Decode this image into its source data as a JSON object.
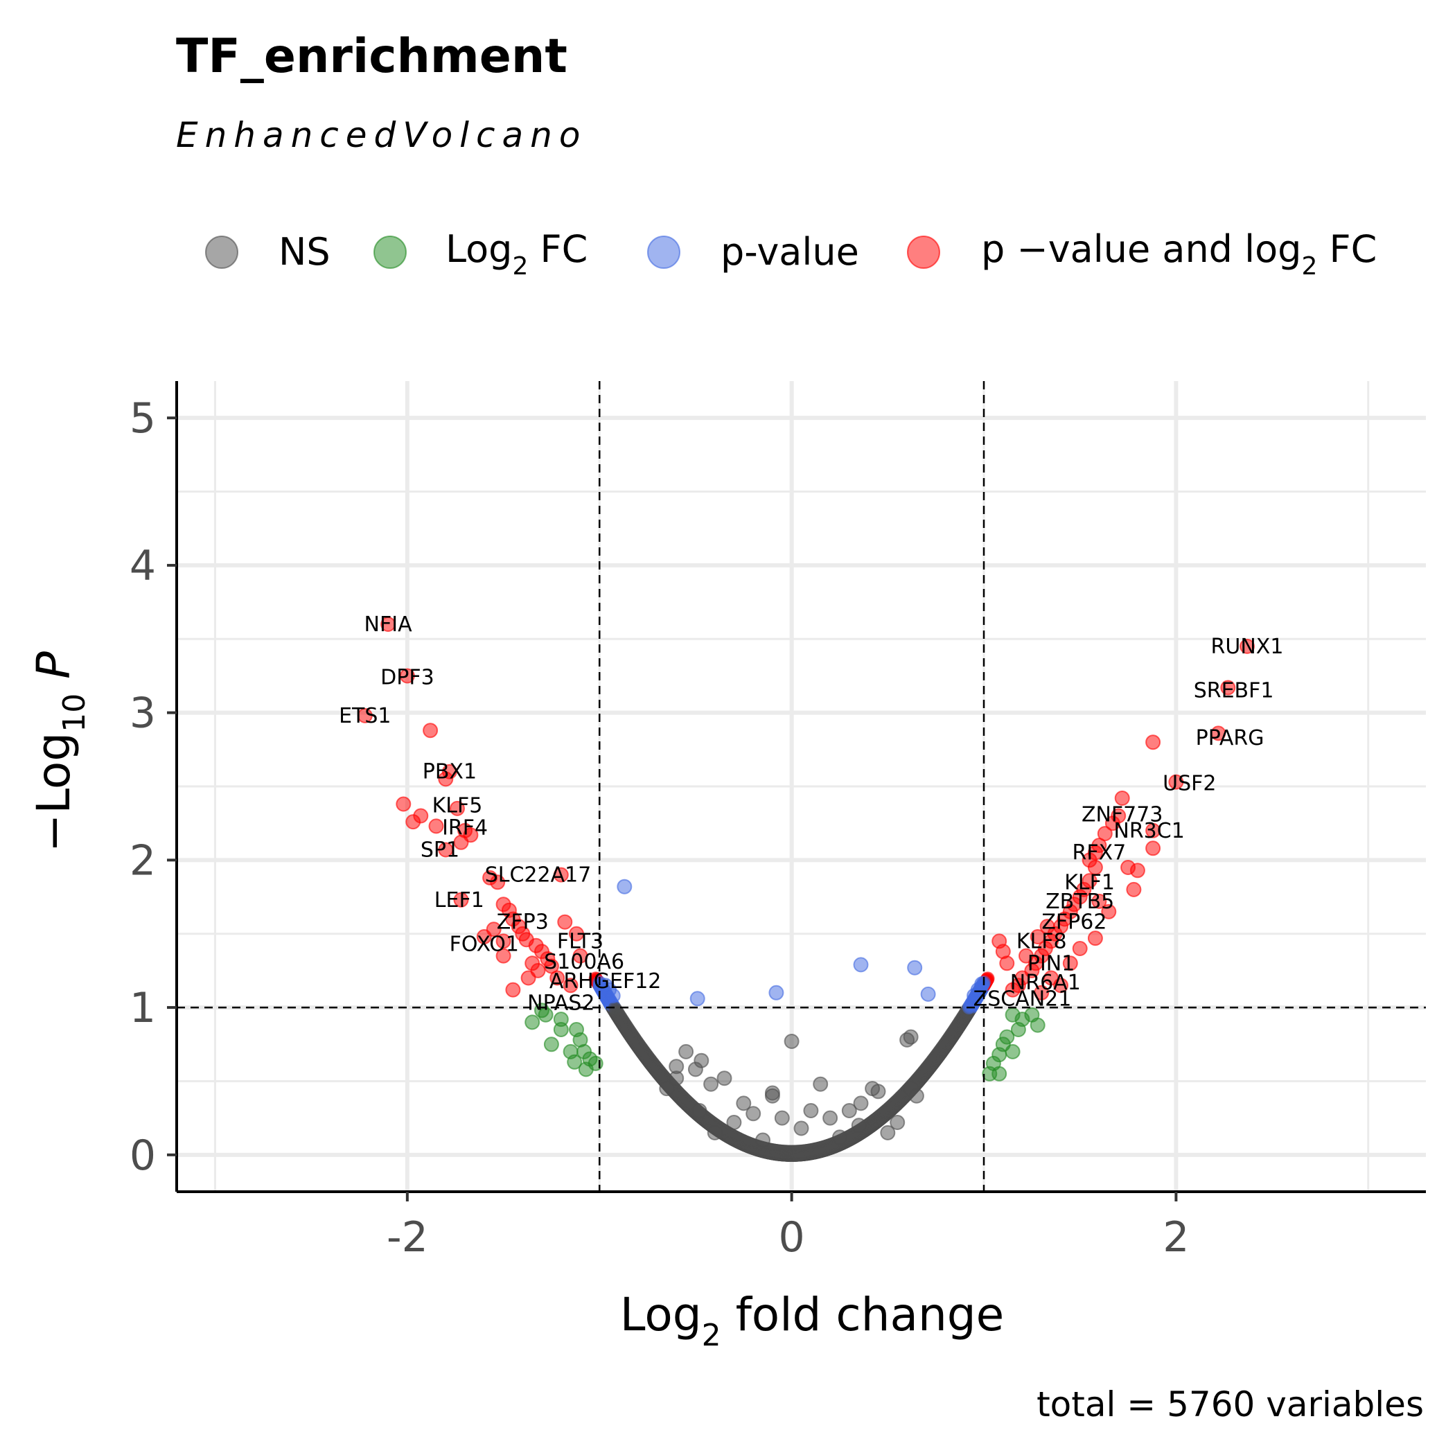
{
  "chart_data": {
    "type": "scatter",
    "title": "TF_enrichment",
    "subtitle": "EnhancedVolcano",
    "caption": "total = 5760 variables",
    "xlabel": {
      "main": "Log",
      "sub": "2",
      "rest": " fold change"
    },
    "ylabel": {
      "prefix": "−Log",
      "sub": "10",
      "suffix": " P"
    },
    "xlim": [
      -3.2,
      3.3
    ],
    "ylim": [
      -0.25,
      5.25
    ],
    "x_ticks": [
      -2,
      0,
      2
    ],
    "x_tick_labels": [
      "-2",
      "0",
      "2"
    ],
    "y_ticks": [
      0,
      1,
      2,
      3,
      4,
      5
    ],
    "y_tick_labels": [
      "0",
      "1",
      "2",
      "3",
      "4",
      "5"
    ],
    "grid": true,
    "cutoffs": {
      "log2fc": [
        -1,
        1
      ],
      "neg_log10_p": 1
    },
    "legend": {
      "position": "top",
      "items": [
        {
          "key": "ns",
          "main": "NS",
          "sub": "",
          "rest": ""
        },
        {
          "key": "fc",
          "main": "Log",
          "sub": "2",
          "rest": " FC"
        },
        {
          "key": "p",
          "main": "p-value",
          "sub": "",
          "rest": ""
        },
        {
          "key": "both",
          "main": "p −value  and  log",
          "sub": "2",
          "rest": " FC"
        }
      ]
    },
    "colors": {
      "ns": "#4d4d4d",
      "fc": "#228b22",
      "p": "#4169e1",
      "both": "#ff0000"
    },
    "curve": {
      "description": "dense band of points along -log10 p = 1.15 * fc^2",
      "coefficient": 1.15,
      "n": 5760
    },
    "series": [
      {
        "name": "p −value  and  log2 FC",
        "key": "both",
        "points": [
          [
            -2.1,
            3.6
          ],
          [
            -2.0,
            3.25
          ],
          [
            -2.22,
            2.98
          ],
          [
            -1.88,
            2.88
          ],
          [
            -1.78,
            2.6
          ],
          [
            -1.8,
            2.55
          ],
          [
            -2.02,
            2.38
          ],
          [
            -1.93,
            2.3
          ],
          [
            -1.97,
            2.26
          ],
          [
            -1.85,
            2.23
          ],
          [
            -1.74,
            2.35
          ],
          [
            -1.7,
            2.2
          ],
          [
            -1.67,
            2.17
          ],
          [
            -1.72,
            2.12
          ],
          [
            -1.8,
            2.07
          ],
          [
            -1.57,
            1.88
          ],
          [
            -1.53,
            1.85
          ],
          [
            -1.5,
            1.7
          ],
          [
            -1.47,
            1.66
          ],
          [
            -1.72,
            1.73
          ],
          [
            -1.45,
            1.6
          ],
          [
            -1.42,
            1.55
          ],
          [
            -1.4,
            1.5
          ],
          [
            -1.38,
            1.46
          ],
          [
            -1.55,
            1.53
          ],
          [
            -1.6,
            1.48
          ],
          [
            -1.5,
            1.45
          ],
          [
            -1.33,
            1.42
          ],
          [
            -1.3,
            1.38
          ],
          [
            -1.27,
            1.33
          ],
          [
            -1.25,
            1.28
          ],
          [
            -1.32,
            1.25
          ],
          [
            -1.37,
            1.2
          ],
          [
            -1.45,
            1.12
          ],
          [
            -1.22,
            1.2
          ],
          [
            -1.18,
            1.58
          ],
          [
            -1.12,
            1.5
          ],
          [
            -1.2,
            1.9
          ],
          [
            -1.1,
            1.35
          ],
          [
            -1.15,
            1.15
          ],
          [
            -1.5,
            1.35
          ],
          [
            -1.35,
            1.3
          ],
          [
            2.37,
            3.45
          ],
          [
            2.27,
            3.17
          ],
          [
            2.22,
            2.86
          ],
          [
            1.88,
            2.8
          ],
          [
            2.0,
            2.53
          ],
          [
            1.72,
            2.42
          ],
          [
            1.7,
            2.3
          ],
          [
            1.67,
            2.25
          ],
          [
            1.63,
            2.18
          ],
          [
            1.88,
            2.2
          ],
          [
            1.88,
            2.08
          ],
          [
            1.6,
            2.1
          ],
          [
            1.58,
            2.05
          ],
          [
            1.55,
            2.0
          ],
          [
            1.58,
            1.95
          ],
          [
            1.75,
            1.95
          ],
          [
            1.8,
            1.93
          ],
          [
            1.78,
            1.8
          ],
          [
            1.55,
            1.86
          ],
          [
            1.52,
            1.8
          ],
          [
            1.5,
            1.75
          ],
          [
            1.47,
            1.7
          ],
          [
            1.6,
            1.72
          ],
          [
            1.65,
            1.65
          ],
          [
            1.45,
            1.65
          ],
          [
            1.42,
            1.6
          ],
          [
            1.4,
            1.55
          ],
          [
            1.37,
            1.5
          ],
          [
            1.35,
            1.45
          ],
          [
            1.58,
            1.47
          ],
          [
            1.32,
            1.4
          ],
          [
            1.3,
            1.35
          ],
          [
            1.27,
            1.3
          ],
          [
            1.25,
            1.25
          ],
          [
            1.5,
            1.4
          ],
          [
            1.45,
            1.3
          ],
          [
            1.2,
            1.2
          ],
          [
            1.18,
            1.15
          ],
          [
            1.12,
            1.3
          ],
          [
            1.1,
            1.38
          ],
          [
            1.08,
            1.45
          ],
          [
            1.4,
            1.15
          ],
          [
            1.35,
            1.2
          ],
          [
            1.3,
            1.1
          ],
          [
            1.15,
            1.12
          ],
          [
            1.22,
            1.35
          ],
          [
            1.28,
            1.48
          ],
          [
            1.33,
            1.55
          ]
        ]
      },
      {
        "name": "p-value",
        "key": "p",
        "points": [
          [
            -0.87,
            1.82
          ],
          [
            0.36,
            1.29
          ],
          [
            0.64,
            1.27
          ],
          [
            -0.08,
            1.1
          ],
          [
            -0.49,
            1.06
          ],
          [
            0.71,
            1.09
          ],
          [
            -0.97,
            1.15
          ],
          [
            -0.95,
            1.12
          ],
          [
            -0.93,
            1.08
          ],
          [
            0.97,
            1.12
          ],
          [
            0.95,
            1.08
          ],
          [
            0.99,
            1.16
          ]
        ]
      },
      {
        "name": "Log2 FC",
        "key": "fc",
        "points": [
          [
            -1.28,
            0.95
          ],
          [
            -1.35,
            0.9
          ],
          [
            -1.2,
            0.92
          ],
          [
            -1.12,
            0.85
          ],
          [
            -1.1,
            0.78
          ],
          [
            -1.08,
            0.7
          ],
          [
            -1.05,
            0.65
          ],
          [
            -1.13,
            0.63
          ],
          [
            -1.07,
            0.58
          ],
          [
            -1.2,
            0.85
          ],
          [
            -1.25,
            0.75
          ],
          [
            -1.02,
            0.62
          ],
          [
            -1.15,
            0.7
          ],
          [
            -1.3,
            0.98
          ],
          [
            1.28,
            0.88
          ],
          [
            1.2,
            0.92
          ],
          [
            1.12,
            0.8
          ],
          [
            1.1,
            0.75
          ],
          [
            1.08,
            0.68
          ],
          [
            1.05,
            0.62
          ],
          [
            1.15,
            0.7
          ],
          [
            1.18,
            0.85
          ],
          [
            1.03,
            0.55
          ],
          [
            1.08,
            0.55
          ],
          [
            1.25,
            0.95
          ],
          [
            1.15,
            0.95
          ]
        ]
      },
      {
        "name": "NS",
        "key": "ns",
        "points": [
          [
            -0.55,
            0.7
          ],
          [
            -0.47,
            0.64
          ],
          [
            -0.6,
            0.6
          ],
          [
            -0.5,
            0.58
          ],
          [
            -0.42,
            0.48
          ],
          [
            -0.35,
            0.52
          ],
          [
            -0.1,
            0.42
          ],
          [
            0.0,
            0.77
          ],
          [
            0.15,
            0.48
          ],
          [
            0.42,
            0.45
          ],
          [
            0.45,
            0.43
          ],
          [
            0.62,
            0.8
          ],
          [
            0.6,
            0.78
          ],
          [
            0.36,
            0.35
          ],
          [
            0.3,
            0.3
          ],
          [
            0.2,
            0.25
          ],
          [
            -0.05,
            0.25
          ],
          [
            -0.2,
            0.28
          ],
          [
            -0.25,
            0.35
          ],
          [
            -0.3,
            0.22
          ],
          [
            -0.48,
            0.3
          ],
          [
            0.55,
            0.22
          ],
          [
            -0.1,
            0.4
          ],
          [
            0.05,
            0.18
          ],
          [
            0.35,
            0.2
          ],
          [
            -0.6,
            0.52
          ],
          [
            -0.65,
            0.45
          ],
          [
            0.62,
            0.45
          ],
          [
            0.65,
            0.4
          ],
          [
            0.25,
            0.12
          ],
          [
            -0.15,
            0.1
          ],
          [
            0.5,
            0.15
          ],
          [
            -0.4,
            0.15
          ],
          [
            0.1,
            0.3
          ]
        ]
      }
    ],
    "labels": [
      {
        "text": "NFIA",
        "x": -2.1,
        "y": 3.6
      },
      {
        "text": "DPF3",
        "x": -2.0,
        "y": 3.24
      },
      {
        "text": "ETS1",
        "x": -2.22,
        "y": 2.98
      },
      {
        "text": "PBX1",
        "x": -1.78,
        "y": 2.6
      },
      {
        "text": "KLF5",
        "x": -1.74,
        "y": 2.37
      },
      {
        "text": "IRF4",
        "x": -1.7,
        "y": 2.22
      },
      {
        "text": "SP1",
        "x": -1.83,
        "y": 2.07
      },
      {
        "text": "SLC22A17",
        "x": -1.32,
        "y": 1.9
      },
      {
        "text": "LEF1",
        "x": -1.73,
        "y": 1.73
      },
      {
        "text": "ZFP3",
        "x": -1.4,
        "y": 1.58
      },
      {
        "text": "FOXO1",
        "x": -1.6,
        "y": 1.43
      },
      {
        "text": "FLT3",
        "x": -1.1,
        "y": 1.45
      },
      {
        "text": "S100A6",
        "x": -1.08,
        "y": 1.31
      },
      {
        "text": "ARHGEF12",
        "x": -0.97,
        "y": 1.18
      },
      {
        "text": "NPAS2",
        "x": -1.2,
        "y": 1.03
      },
      {
        "text": "RUNX1",
        "x": 2.37,
        "y": 3.45
      },
      {
        "text": "SREBF1",
        "x": 2.3,
        "y": 3.15
      },
      {
        "text": "PPARG",
        "x": 2.28,
        "y": 2.83
      },
      {
        "text": "USF2",
        "x": 2.07,
        "y": 2.52
      },
      {
        "text": "ZNF773",
        "x": 1.72,
        "y": 2.31
      },
      {
        "text": "NR3C1",
        "x": 1.86,
        "y": 2.2
      },
      {
        "text": "RFX7",
        "x": 1.6,
        "y": 2.05
      },
      {
        "text": "KLF1",
        "x": 1.55,
        "y": 1.85
      },
      {
        "text": "ZBTB5",
        "x": 1.5,
        "y": 1.72
      },
      {
        "text": "ZFP62",
        "x": 1.47,
        "y": 1.58
      },
      {
        "text": "KLF8",
        "x": 1.3,
        "y": 1.45
      },
      {
        "text": "PIN1",
        "x": 1.35,
        "y": 1.3
      },
      {
        "text": "NR6A1",
        "x": 1.32,
        "y": 1.17
      },
      {
        "text": "ZSCAN21",
        "x": 1.2,
        "y": 1.06
      }
    ]
  }
}
